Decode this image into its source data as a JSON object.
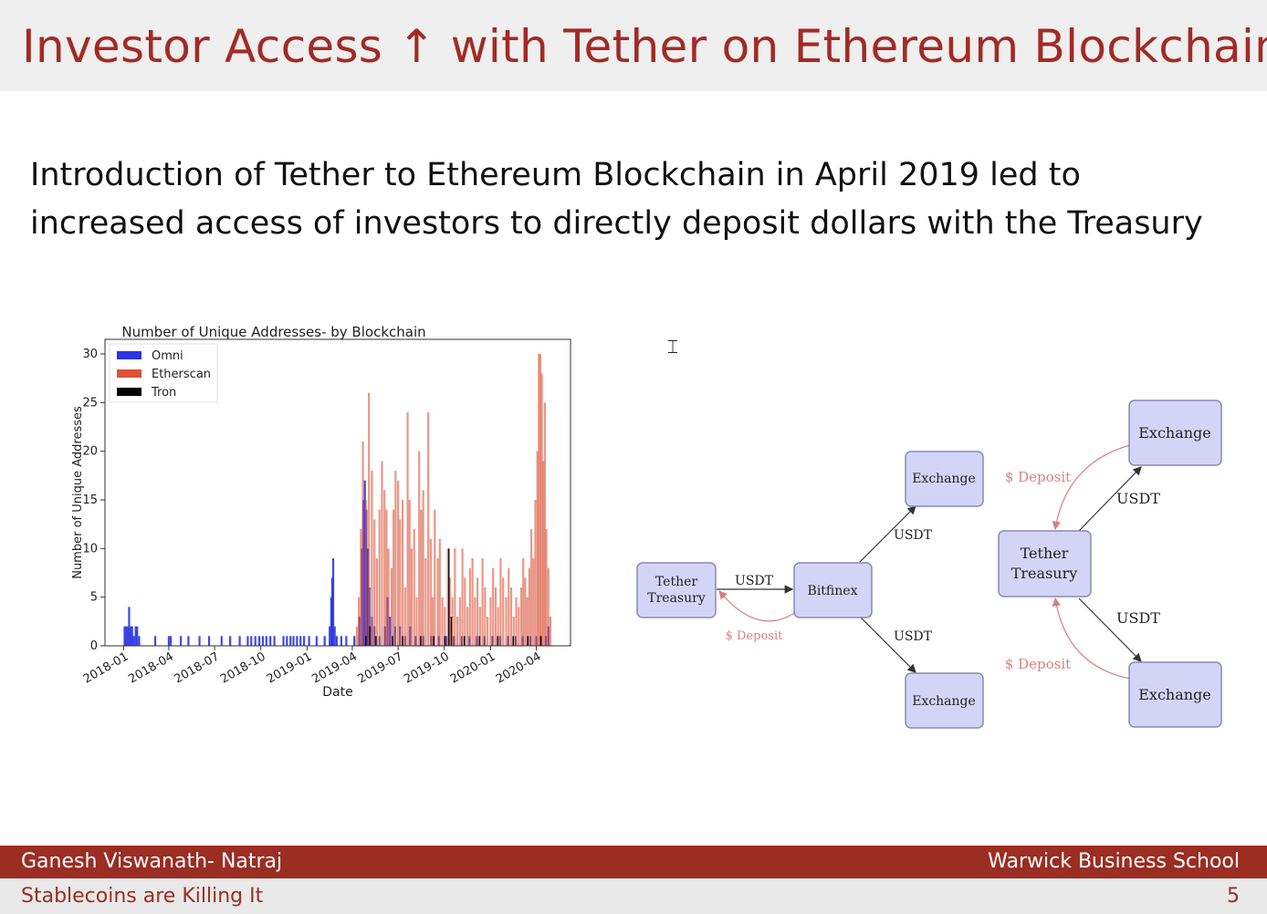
{
  "slide": {
    "title": "Investor Access ↑ with Tether on Ethereum Blockchain",
    "intro_line1": "Introduction of Tether to Ethereum Blockchain in April 2019 led to",
    "intro_line2": "increased access of investors to directly deposit dollars with the Treasury"
  },
  "footer": {
    "author": "Ganesh Viswanath- Natraj",
    "institution": "Warwick Business School",
    "talk_title": "Stablecoins are Killing It",
    "page_number": "5"
  },
  "colors": {
    "title": "#a32a25",
    "footer_bar": "#9b2d22",
    "omni": "#2b35e0",
    "etherscan": "#d9533a",
    "tron": "#000000",
    "node_fill": "#d4d4f6",
    "node_stroke": "#8a8ab5",
    "deposit_arrow": "#d98080"
  },
  "chart_data": {
    "type": "bar",
    "title": "Number of Unique Addresses- by Blockchain",
    "xlabel": "Date",
    "ylabel": "Number of Unique Addresses",
    "xlim": [
      "2017-11-25",
      "2020-06-08"
    ],
    "ylim": [
      0,
      31.5
    ],
    "yticks": [
      0,
      5,
      10,
      15,
      20,
      25,
      30
    ],
    "xticks": [
      "2018-01",
      "2018-04",
      "2018-07",
      "2018-10",
      "2019-01",
      "2019-04",
      "2019-07",
      "2019-10",
      "2020-01",
      "2020-04"
    ],
    "legend_position": "top-left",
    "series": [
      {
        "name": "Omni",
        "points": [
          [
            "2018-01-03",
            2
          ],
          [
            "2018-01-06",
            2
          ],
          [
            "2018-01-09",
            2
          ],
          [
            "2018-01-12",
            4
          ],
          [
            "2018-01-15",
            2
          ],
          [
            "2018-01-18",
            2
          ],
          [
            "2018-01-21",
            1
          ],
          [
            "2018-01-25",
            2
          ],
          [
            "2018-01-28",
            2
          ],
          [
            "2018-02-01",
            1
          ],
          [
            "2018-03-05",
            1
          ],
          [
            "2018-04-01",
            1
          ],
          [
            "2018-04-05",
            1
          ],
          [
            "2018-04-25",
            1
          ],
          [
            "2018-05-10",
            1
          ],
          [
            "2018-06-01",
            1
          ],
          [
            "2018-06-20",
            1
          ],
          [
            "2018-07-15",
            1
          ],
          [
            "2018-08-01",
            1
          ],
          [
            "2018-08-20",
            1
          ],
          [
            "2018-09-05",
            1
          ],
          [
            "2018-09-12",
            1
          ],
          [
            "2018-09-20",
            1
          ],
          [
            "2018-09-28",
            1
          ],
          [
            "2018-10-05",
            1
          ],
          [
            "2018-10-12",
            1
          ],
          [
            "2018-10-20",
            1
          ],
          [
            "2018-10-28",
            1
          ],
          [
            "2018-11-15",
            1
          ],
          [
            "2018-11-22",
            1
          ],
          [
            "2018-11-29",
            1
          ],
          [
            "2018-12-05",
            1
          ],
          [
            "2018-12-12",
            1
          ],
          [
            "2018-12-19",
            1
          ],
          [
            "2018-12-26",
            1
          ],
          [
            "2019-01-05",
            1
          ],
          [
            "2019-01-20",
            1
          ],
          [
            "2019-02-05",
            1
          ],
          [
            "2019-02-15",
            2
          ],
          [
            "2019-02-18",
            5
          ],
          [
            "2019-02-20",
            7
          ],
          [
            "2019-02-22",
            9
          ],
          [
            "2019-02-25",
            2
          ],
          [
            "2019-03-01",
            1
          ],
          [
            "2019-03-10",
            1
          ],
          [
            "2019-03-20",
            1
          ],
          [
            "2019-04-05",
            1
          ],
          [
            "2019-04-15",
            3
          ],
          [
            "2019-04-20",
            10
          ],
          [
            "2019-04-23",
            15
          ],
          [
            "2019-04-26",
            17
          ],
          [
            "2019-04-29",
            14
          ],
          [
            "2019-05-02",
            10
          ],
          [
            "2019-05-05",
            6
          ],
          [
            "2019-05-10",
            3
          ],
          [
            "2019-05-15",
            2
          ],
          [
            "2019-05-25",
            1
          ],
          [
            "2019-06-05",
            2
          ],
          [
            "2019-06-10",
            5
          ],
          [
            "2019-06-15",
            3
          ],
          [
            "2019-06-25",
            2
          ],
          [
            "2019-07-05",
            2
          ],
          [
            "2019-07-15",
            1
          ],
          [
            "2019-07-25",
            2
          ],
          [
            "2019-08-05",
            1
          ],
          [
            "2019-08-20",
            1
          ],
          [
            "2019-09-05",
            1
          ],
          [
            "2019-09-20",
            1
          ],
          [
            "2019-10-05",
            1
          ],
          [
            "2019-10-20",
            1
          ],
          [
            "2019-11-05",
            1
          ],
          [
            "2019-11-20",
            1
          ],
          [
            "2019-12-05",
            1
          ],
          [
            "2019-12-20",
            1
          ],
          [
            "2020-01-05",
            1
          ],
          [
            "2020-01-20",
            1
          ],
          [
            "2020-02-05",
            1
          ],
          [
            "2020-02-20",
            1
          ],
          [
            "2020-03-05",
            1
          ],
          [
            "2020-03-20",
            1
          ],
          [
            "2020-04-01",
            1
          ],
          [
            "2020-04-10",
            1
          ],
          [
            "2020-04-20",
            1
          ],
          [
            "2020-04-25",
            2
          ]
        ]
      },
      {
        "name": "Etherscan",
        "points": [
          [
            "2019-04-10",
            2
          ],
          [
            "2019-04-14",
            5
          ],
          [
            "2019-04-18",
            12
          ],
          [
            "2019-04-22",
            21
          ],
          [
            "2019-04-28",
            15
          ],
          [
            "2019-05-04",
            26
          ],
          [
            "2019-05-10",
            18
          ],
          [
            "2019-05-15",
            13
          ],
          [
            "2019-05-20",
            9
          ],
          [
            "2019-05-25",
            14
          ],
          [
            "2019-05-30",
            19
          ],
          [
            "2019-06-04",
            16
          ],
          [
            "2019-06-08",
            14
          ],
          [
            "2019-06-12",
            10
          ],
          [
            "2019-06-18",
            8
          ],
          [
            "2019-06-22",
            14
          ],
          [
            "2019-06-26",
            18
          ],
          [
            "2019-07-01",
            17
          ],
          [
            "2019-07-05",
            13
          ],
          [
            "2019-07-10",
            15
          ],
          [
            "2019-07-15",
            6
          ],
          [
            "2019-07-20",
            24
          ],
          [
            "2019-07-24",
            15
          ],
          [
            "2019-07-28",
            10
          ],
          [
            "2019-08-02",
            12
          ],
          [
            "2019-08-07",
            5
          ],
          [
            "2019-08-12",
            20
          ],
          [
            "2019-08-16",
            14
          ],
          [
            "2019-08-20",
            16
          ],
          [
            "2019-08-25",
            9
          ],
          [
            "2019-08-30",
            24
          ],
          [
            "2019-09-04",
            11
          ],
          [
            "2019-09-08",
            5
          ],
          [
            "2019-09-12",
            14
          ],
          [
            "2019-09-18",
            9
          ],
          [
            "2019-09-22",
            11
          ],
          [
            "2019-09-27",
            5
          ],
          [
            "2019-10-02",
            4
          ],
          [
            "2019-10-08",
            10
          ],
          [
            "2019-10-12",
            7
          ],
          [
            "2019-10-17",
            5
          ],
          [
            "2019-10-22",
            10
          ],
          [
            "2019-10-27",
            3
          ],
          [
            "2019-11-01",
            5
          ],
          [
            "2019-11-06",
            10
          ],
          [
            "2019-11-11",
            7
          ],
          [
            "2019-11-16",
            4
          ],
          [
            "2019-11-21",
            8
          ],
          [
            "2019-11-26",
            9
          ],
          [
            "2019-12-01",
            5
          ],
          [
            "2019-12-06",
            7
          ],
          [
            "2019-12-11",
            4
          ],
          [
            "2019-12-16",
            9
          ],
          [
            "2019-12-21",
            6
          ],
          [
            "2019-12-26",
            3
          ],
          [
            "2020-01-01",
            5
          ],
          [
            "2020-01-06",
            8
          ],
          [
            "2020-01-11",
            6
          ],
          [
            "2020-01-16",
            4
          ],
          [
            "2020-01-21",
            9
          ],
          [
            "2020-01-26",
            7
          ],
          [
            "2020-02-01",
            5
          ],
          [
            "2020-02-06",
            8
          ],
          [
            "2020-02-11",
            6
          ],
          [
            "2020-02-16",
            3
          ],
          [
            "2020-02-21",
            5
          ],
          [
            "2020-02-26",
            4
          ],
          [
            "2020-03-02",
            6
          ],
          [
            "2020-03-06",
            9
          ],
          [
            "2020-03-10",
            7
          ],
          [
            "2020-03-14",
            5
          ],
          [
            "2020-03-18",
            8
          ],
          [
            "2020-03-22",
            12
          ],
          [
            "2020-03-26",
            9
          ],
          [
            "2020-03-30",
            15
          ],
          [
            "2020-04-03",
            20
          ],
          [
            "2020-04-06",
            30
          ],
          [
            "2020-04-09",
            30
          ],
          [
            "2020-04-12",
            28
          ],
          [
            "2020-04-15",
            19
          ],
          [
            "2020-04-18",
            25
          ],
          [
            "2020-04-21",
            12
          ],
          [
            "2020-04-25",
            8
          ],
          [
            "2020-04-29",
            3
          ]
        ]
      },
      {
        "name": "Tron",
        "points": [
          [
            "2019-04-28",
            1
          ],
          [
            "2019-05-06",
            2
          ],
          [
            "2019-05-18",
            1
          ],
          [
            "2019-06-20",
            1
          ],
          [
            "2019-07-10",
            1
          ],
          [
            "2019-08-15",
            1
          ],
          [
            "2019-09-10",
            1
          ],
          [
            "2019-10-02",
            1
          ],
          [
            "2019-10-10",
            10
          ],
          [
            "2019-10-15",
            3
          ],
          [
            "2019-11-10",
            1
          ],
          [
            "2019-12-10",
            1
          ],
          [
            "2020-01-15",
            1
          ],
          [
            "2020-02-15",
            1
          ],
          [
            "2020-03-15",
            1
          ],
          [
            "2020-04-10",
            1
          ]
        ]
      }
    ]
  },
  "diagram": {
    "left": {
      "treasury_line1": "Tether",
      "treasury_line2": "Treasury",
      "bitfinex": "Bitfinex",
      "exchange_top": "Exchange",
      "exchange_bottom": "Exchange",
      "usdt_treasury_to_bitfinex": "USDT",
      "usdt_to_exchange_top": "USDT",
      "usdt_to_exchange_bottom": "USDT",
      "deposit": "$ Deposit"
    },
    "right": {
      "treasury_line1": "Tether",
      "treasury_line2": "Treasury",
      "exchange_top": "Exchange",
      "exchange_bottom": "Exchange",
      "usdt_top": "USDT",
      "usdt_bottom": "USDT",
      "deposit_top": "$ Deposit",
      "deposit_bottom": "$ Deposit"
    }
  }
}
